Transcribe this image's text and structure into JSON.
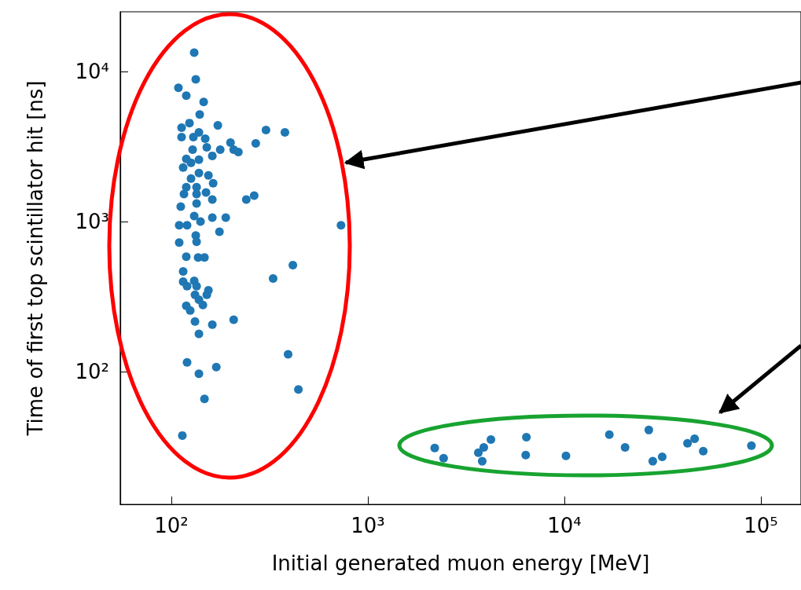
{
  "chart_data": {
    "type": "scatter",
    "xlabel": "Initial generated muon energy [MeV]",
    "ylabel": "Time of first top scintillator hit [ns]",
    "log": "xy",
    "grid": false,
    "marker": "circle",
    "xlim": [
      55,
      160000
    ],
    "ylim": [
      13,
      25000
    ],
    "xticks": [
      {
        "value": 100,
        "label": "10²"
      },
      {
        "value": 1000,
        "label": "10³"
      },
      {
        "value": 10000,
        "label": "10⁴"
      },
      {
        "value": 100000,
        "label": "10⁵"
      }
    ],
    "yticks": [
      {
        "value": 100,
        "label": "10²"
      },
      {
        "value": 1000,
        "label": "10³"
      },
      {
        "value": 10000,
        "label": "10⁴"
      }
    ],
    "series": [
      {
        "color": "#1f77b4",
        "x": [
          130.8,
          133.2,
          108.7,
          119.2,
          146.1,
          139.5,
          112.8,
          123.7,
          172.5,
          303.3,
          378.6,
          112.8,
          129.5,
          138.2,
          148.8,
          200.1,
          269.0,
          219.5,
          207.7,
          177.4,
          151.6,
          128.4,
          119.2,
          138.2,
          161.7,
          114.9,
          126.0,
          138.2,
          154.5,
          126.0,
          163.3,
          119.2,
          134.5,
          116.0,
          134.5,
          150.2,
          161.7,
          240.8,
          264.1,
          111.7,
          134.5,
          130.8,
          140.8,
          161.7,
          189.3,
          109.7,
          120.3,
          175.8,
          730.4,
          133.2,
          109.7,
          134.5,
          119.2,
          136.9,
          147.5,
          114.9,
          329.6,
          415.5,
          114.9,
          130.8,
          120.3,
          134.5,
          154.5,
          151.6,
          132.0,
          138.2,
          144.8,
          119.2,
          124.8,
          132.0,
          161.7,
          207.7,
          138.2,
          393,
          120.3,
          169.4,
          138.2,
          443.4,
          147.5,
          113.8,
          2190,
          2430,
          3650,
          3890,
          4230,
          3820,
          6410,
          6360,
          10190,
          16940,
          20370,
          26900,
          28180,
          31470,
          42330,
          46000,
          50900,
          89500
        ],
        "values": [
          13340,
          8870,
          7775,
          6897,
          6264,
          5170,
          4217,
          4530,
          4370,
          4068,
          3924,
          3652,
          3652,
          3924,
          3565,
          3357,
          3318,
          2907,
          3014,
          3014,
          3125,
          3014,
          2610,
          2579,
          2738,
          2288,
          2458,
          2103,
          2029,
          1934,
          1800,
          1695,
          1695,
          1522,
          1522,
          1559,
          1399,
          1399,
          1486,
          1256,
          1318,
          1088,
          1000,
          1062,
          1062,
          942,
          942,
          855,
          942,
          806,
          723,
          732,
          583,
          576,
          576,
          464,
          417,
          511,
          397,
          402,
          370,
          370,
          348,
          324,
          324,
          301,
          277,
          274,
          255,
          215,
          205,
          221,
          178,
          130,
          115,
          107,
          96.5,
          75.9,
          65.7,
          37.4,
          30.9,
          26.4,
          28.7,
          31.2,
          35.2,
          25.2,
          36.5,
          27.7,
          27.4,
          37.9,
          31.2,
          40.7,
          25.2,
          27.0,
          33.2,
          35.6,
          29.4,
          32.0
        ]
      }
    ]
  }
}
